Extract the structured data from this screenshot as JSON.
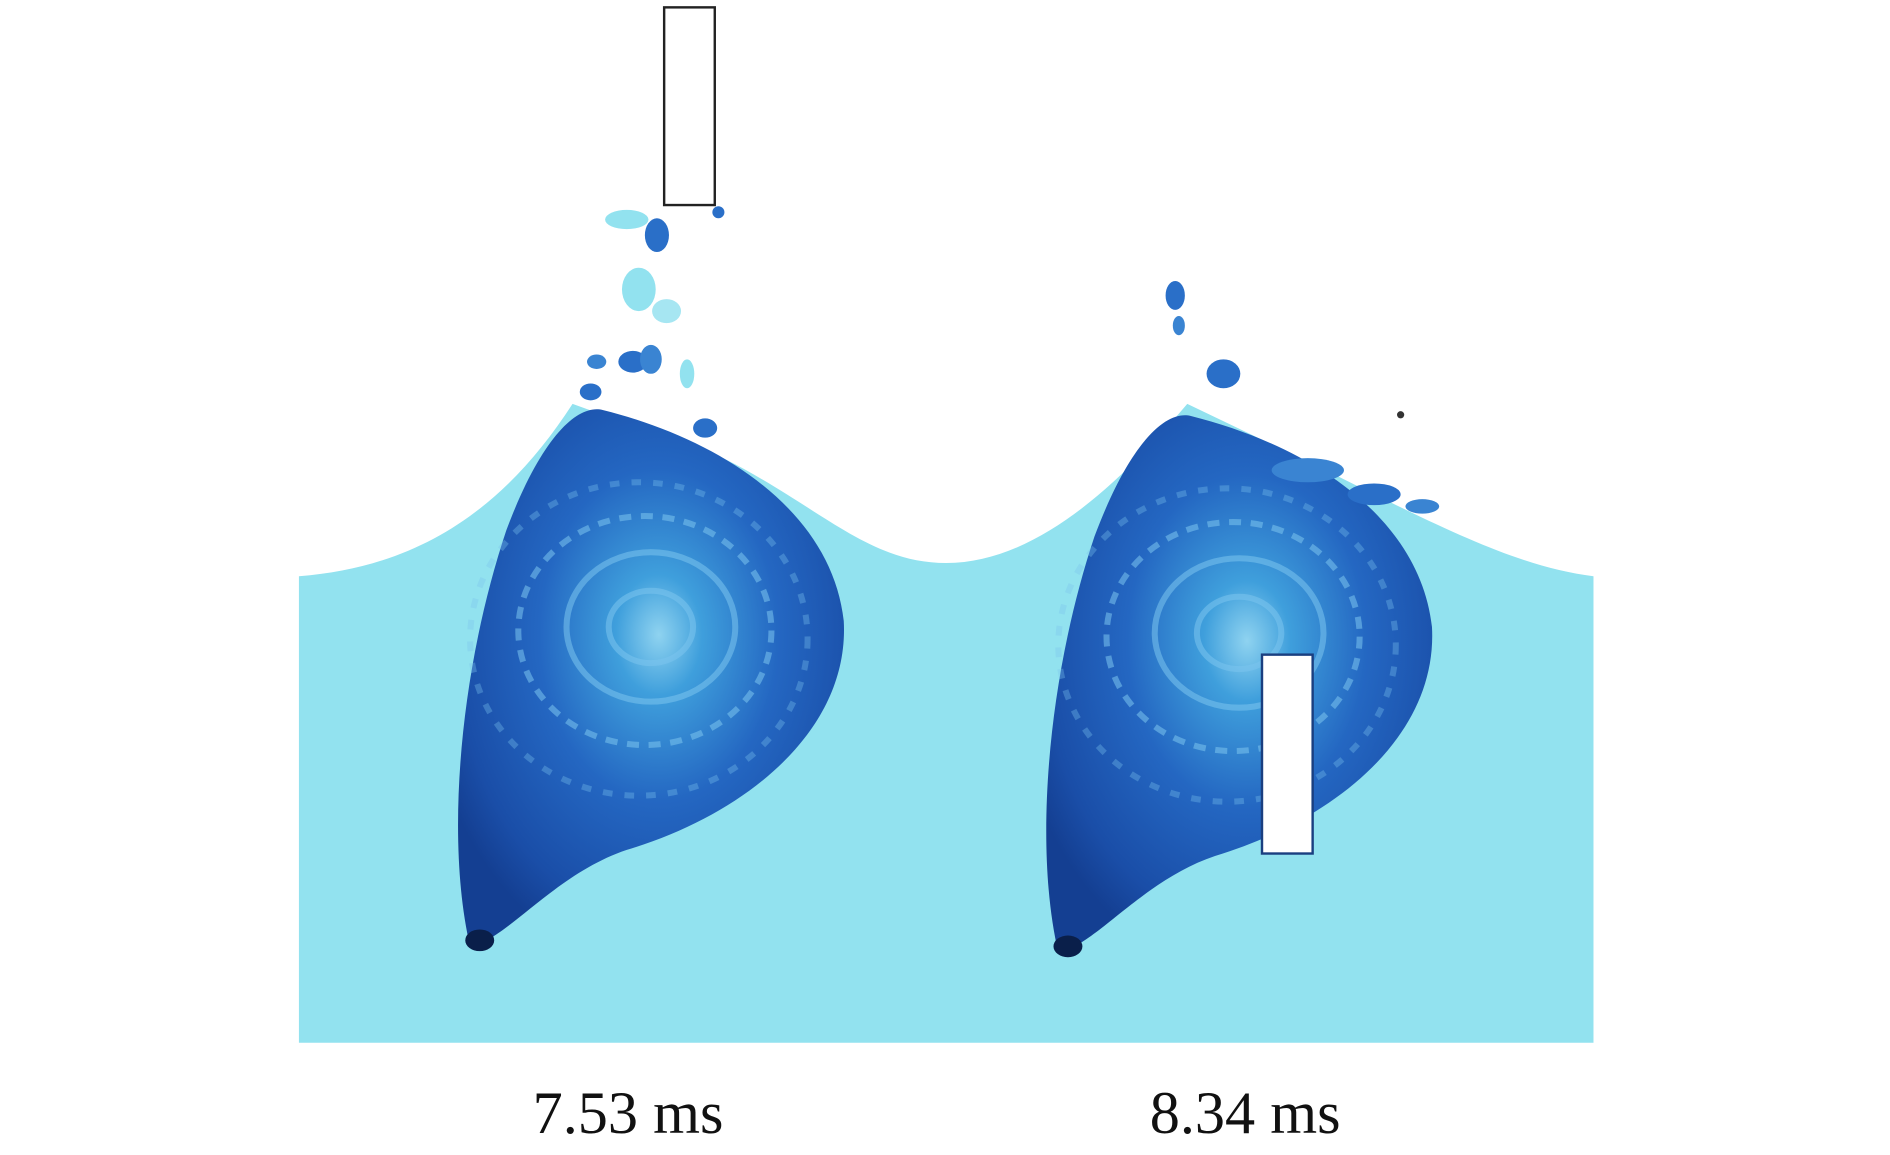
{
  "panels": [
    {
      "label": "7.53 ms"
    },
    {
      "label": "8.34 ms"
    }
  ]
}
